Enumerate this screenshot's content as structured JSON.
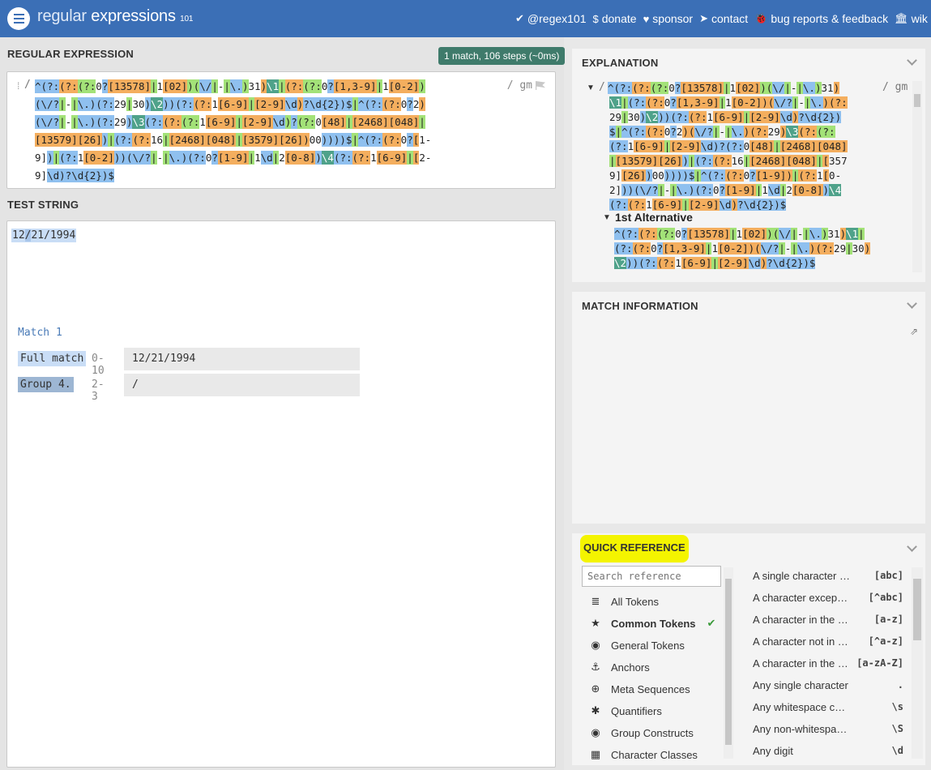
{
  "header": {
    "logo_main": "regular",
    "logo_secondary": "expressions",
    "logo_sub": "101",
    "nav": [
      {
        "icon": "twitter-icon",
        "glyph": "✔",
        "label": "@regex101"
      },
      {
        "icon": "dollar-icon",
        "glyph": "$",
        "label": "donate"
      },
      {
        "icon": "heart-icon",
        "glyph": "♥",
        "label": "sponsor"
      },
      {
        "icon": "paper-plane-icon",
        "glyph": "➤",
        "label": "contact"
      },
      {
        "icon": "bug-icon",
        "glyph": "🐞",
        "label": "bug reports & feedback"
      },
      {
        "icon": "bank-icon",
        "glyph": "🏛",
        "label": "wik"
      }
    ]
  },
  "regex": {
    "section_title": "REGULAR EXPRESSION",
    "status": "1 match, 106 steps (~0ms)",
    "delimiter": "/",
    "flags": "/ gm",
    "lines": [
      "^(?:(?:(?:0?[13578]|1[02])(\\/|-|\\.)31)\\1|(?:(?:0?[1,3-9]|1[0-2])",
      "(\\/?|-|\\.)(?:29|30)\\2))(?:(?:1[6-9]|[2-9]\\d)?\\d{2})$|^(?:(?:0?2)",
      "(\\/?|-|\\.)(?:29)\\3(?:(?:(?:1[6-9]|[2-9]\\d)?(?:0[48]|[2468][048]|",
      "[13579][26])|(?:(?:16|[2468][048]|[3579][26])00))))$|^(?:(?:0?[1-",
      "9])|(?:1[0-2]))(\\/?|-|\\.)(?:0?[1-9]|1\\d|2[0-8])\\4(?:(?:1[6-9]|[2-",
      "9]\\d)?\\d{2})$"
    ]
  },
  "test": {
    "section_title": "TEST STRING",
    "text_a": "12",
    "text_b": "/",
    "text_c": "21/1994"
  },
  "explanation": {
    "title": "EXPLANATION",
    "lines": [
      "^(?:(?:(?:0?[13578]|1[02])(\\/|-|\\.)31)",
      "\\1|(?:(?:0?[1,3-9]|1[0-2])(\\/?|-|\\.)(?:",
      "29|30)\\2))(?:(?:1[6-9]|[2-9]\\d)?\\d{2})",
      "$|^(?:(?:0?2)(\\/?|-|\\.)(?:29)\\3(?:(?:",
      "(?:1[6-9]|[2-9]\\d)?(?:0[48]|[2468][048]",
      "|[13579][26])|(?:(?:16|[2468][048]|[357",
      "9][26])00))))$|^(?:(?:0?[1-9])|(?:1[0-",
      "2]))(\\/?|-|\\.)(?:0?[1-9]|1\\d|2[0-8])\\4",
      "(?:(?:1[6-9]|[2-9]\\d)?\\d{2})$"
    ],
    "flags": "/ gm",
    "alt_title": "1st Alternative",
    "alt_lines": [
      "^(?:(?:(?:0?[13578]|1[02])(\\/|-|\\.)31)\\1|",
      "(?:(?:0?[1,3-9]|1[0-2])(\\/?|-|\\.)(?:29|30)",
      "\\2))(?:(?:1[6-9]|[2-9]\\d)?\\d{2})$"
    ]
  },
  "match": {
    "title": "MATCH INFORMATION",
    "match_label": "Match 1",
    "rows": [
      {
        "label": "Full match",
        "range": "0-10",
        "value": "12/21/1994"
      },
      {
        "label": "Group 4.",
        "range": "2-3",
        "value": "/"
      }
    ]
  },
  "quick": {
    "title": "QUICK REFERENCE",
    "search_placeholder": "Search reference",
    "categories": [
      {
        "icon": "database-icon",
        "glyph": "≣",
        "label": "All Tokens"
      },
      {
        "icon": "star-icon",
        "glyph": "★",
        "label": "Common Tokens",
        "active": true
      },
      {
        "icon": "target-icon",
        "glyph": "◉",
        "label": "General Tokens"
      },
      {
        "icon": "anchor-icon",
        "glyph": "⚓",
        "label": "Anchors"
      },
      {
        "icon": "lifebuoy-icon",
        "glyph": "⊕",
        "label": "Meta Sequences"
      },
      {
        "icon": "asterisk-icon",
        "glyph": "✱",
        "label": "Quantifiers"
      },
      {
        "icon": "group-icon",
        "glyph": "◉",
        "label": "Group Constructs"
      },
      {
        "icon": "grid-icon",
        "glyph": "▦",
        "label": "Character Classes"
      }
    ],
    "check": "✔",
    "refs": [
      {
        "desc": "A single character of: a, b or c",
        "token": "[abc]"
      },
      {
        "desc": "A character except: a, b or c",
        "token": "[^abc]"
      },
      {
        "desc": "A character in the range: a-z",
        "token": "[a-z]"
      },
      {
        "desc": "A character not in the range: a-z",
        "token": "[^a-z]"
      },
      {
        "desc": "A character in the range: a-z or A-Z",
        "token": "[a-zA-Z]"
      },
      {
        "desc": "Any single character",
        "token": "."
      },
      {
        "desc": "Any whitespace character",
        "token": "\\s"
      },
      {
        "desc": "Any non-whitespace character",
        "token": "\\S"
      },
      {
        "desc": "Any digit",
        "token": "\\d"
      }
    ]
  }
}
